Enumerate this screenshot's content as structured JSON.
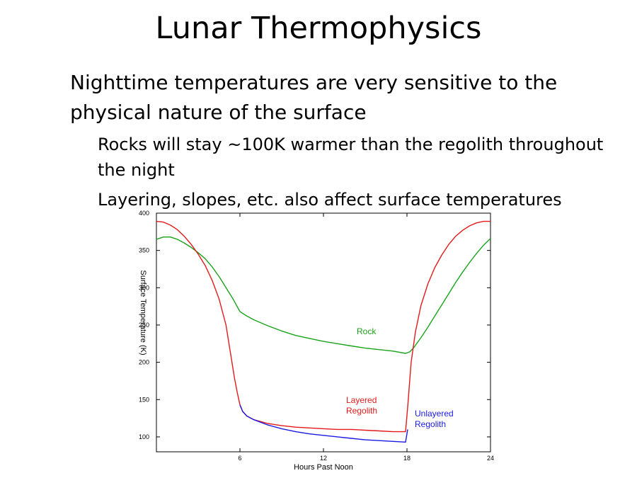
{
  "slide": {
    "title": "Lunar Thermophysics",
    "bullet": "Nighttime temperatures are very sensitive to the physical nature of the surface",
    "subbullets": [
      "Rocks will stay ~100K warmer than the regolith throughout the night",
      "Layering, slopes, etc. also affect surface temperatures"
    ]
  },
  "chart_data": {
    "type": "line",
    "xlabel": "Hours Past Noon",
    "ylabel": "Surface Temperature (K)",
    "xlim": [
      0,
      24
    ],
    "ylim": [
      80,
      400
    ],
    "xticks": [
      6,
      12,
      18,
      24
    ],
    "yticks": [
      100,
      150,
      200,
      250,
      300,
      350,
      400
    ],
    "grid": false,
    "series": [
      {
        "name": "Rock",
        "color": "#1aa31a",
        "x": [
          0,
          0.5,
          1,
          1.5,
          2,
          2.5,
          3,
          3.5,
          4,
          4.5,
          5,
          5.5,
          6,
          6.5,
          7,
          8,
          9,
          10,
          11,
          12,
          13,
          14,
          15,
          16,
          17,
          17.9,
          18.2,
          18.5,
          19,
          19.5,
          20,
          20.5,
          21,
          21.5,
          22,
          22.5,
          23,
          23.5,
          24
        ],
        "y": [
          365,
          368,
          368,
          365,
          360,
          354,
          347,
          339,
          328,
          315,
          300,
          285,
          268,
          262,
          257,
          249,
          242,
          236,
          232,
          228,
          225,
          222,
          219,
          217,
          215,
          212,
          214,
          220,
          233,
          247,
          262,
          277,
          292,
          307,
          321,
          334,
          346,
          357,
          366
        ]
      },
      {
        "name": "Layered Regolith",
        "color": "#e31a1a",
        "x": [
          0,
          0.5,
          1,
          1.5,
          2,
          2.5,
          3,
          3.5,
          4,
          4.5,
          5,
          5.3,
          5.6,
          5.8,
          6,
          6.2,
          6.5,
          7,
          8,
          9,
          10,
          11,
          12,
          13,
          14,
          15,
          16,
          17,
          17.9,
          18.05,
          18.3,
          18.6,
          19,
          19.5,
          20,
          20.5,
          21,
          21.5,
          22,
          22.5,
          23,
          23.5,
          24
        ],
        "y": [
          389,
          388,
          384,
          378,
          369,
          358,
          345,
          330,
          310,
          285,
          250,
          215,
          180,
          160,
          143,
          134,
          128,
          123,
          118,
          115,
          113,
          112,
          111,
          110,
          110,
          109,
          108,
          107,
          107,
          140,
          200,
          240,
          276,
          305,
          327,
          344,
          358,
          369,
          377,
          383,
          387,
          389,
          389
        ]
      },
      {
        "name": "Unlayered Regolith",
        "color": "#1a1ae3",
        "x": [
          6,
          6.2,
          6.5,
          7,
          8,
          9,
          10,
          11,
          12,
          13,
          14,
          15,
          16,
          17,
          17.9,
          18.05
        ],
        "y": [
          143,
          134,
          128,
          123,
          116,
          111,
          107,
          104,
          102,
          100,
          98,
          96,
          95,
          94,
          93,
          110
        ]
      }
    ],
    "annotations": [
      "Rock",
      "Layered",
      "Regolith",
      "Unlayered",
      "Regolith"
    ]
  }
}
